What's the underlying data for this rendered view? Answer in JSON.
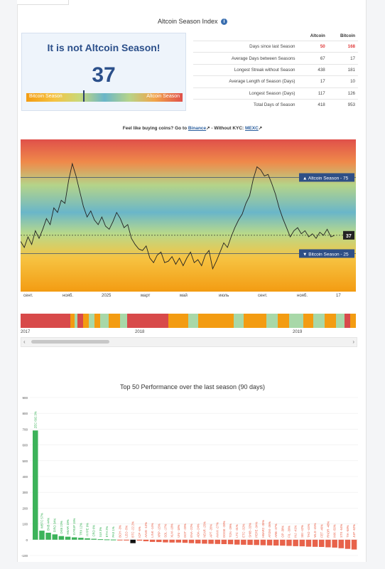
{
  "page": {
    "title": "Altcoin Season Index",
    "info_icon": "info-icon",
    "status_text": "It is not Altcoin Season!",
    "index_value": "37",
    "bar_left": "Bitcoin Season",
    "bar_right": "Altcoin Season",
    "index_fraction": 0.37
  },
  "stats": {
    "headers": [
      "",
      "Altcoin",
      "Bitcoin"
    ],
    "rows": [
      {
        "label": "Days since last Season",
        "altcoin": "50",
        "bitcoin": "168",
        "highlight": true
      },
      {
        "label": "Average Days between Seasons",
        "altcoin": "67",
        "bitcoin": "17"
      },
      {
        "label": "Longest Streak without Season",
        "altcoin": "438",
        "bitcoin": "181"
      },
      {
        "label": "Average Length of Season (Days)",
        "altcoin": "17",
        "bitcoin": "10"
      },
      {
        "label": "Longest Season (Days)",
        "altcoin": "117",
        "bitcoin": "126"
      },
      {
        "label": "Total Days of Season",
        "altcoin": "418",
        "bitcoin": "953"
      }
    ]
  },
  "promo": {
    "prefix": "Feel like buying coins? Go to ",
    "link1": "Binance",
    "middle": " - Without KYC: ",
    "link2": "MEXC"
  },
  "index_chart_x_labels": [
    "сент.",
    "нояб.",
    "2025",
    "март",
    "май",
    "июль",
    "сент.",
    "нояб.",
    "17"
  ],
  "season_bar_years": [
    "2017",
    "2018",
    "2019"
  ],
  "colors": {
    "accent": "#2b4f8a",
    "red": "#e03c3c",
    "green": "#3cb35a",
    "orange": "#f39c12",
    "bitcoin_season": "#f39c12",
    "altcoin_season": "#d84a4a",
    "neutral": "#a8d8a8"
  },
  "chart_data": [
    {
      "type": "line",
      "title": "",
      "series": [
        {
          "values": [
            33,
            29,
            36,
            31,
            40,
            35,
            41,
            48,
            44,
            55,
            52,
            60,
            58,
            73,
            84,
            76,
            66,
            56,
            49,
            53,
            47,
            44,
            49,
            43,
            41,
            46,
            52,
            48,
            42,
            44,
            35,
            31,
            28,
            27,
            30,
            22,
            19,
            24,
            26,
            19,
            20,
            23,
            18,
            22,
            17,
            22,
            26,
            19,
            21,
            17,
            24,
            27,
            15,
            20,
            26,
            32,
            29,
            36,
            42,
            47,
            51,
            58,
            63,
            74,
            82,
            80,
            76,
            77,
            71,
            64,
            55,
            48,
            42,
            36,
            40,
            42,
            38,
            40,
            36,
            38,
            35,
            39,
            37,
            41,
            36,
            37
          ]
        }
      ],
      "ylim": [
        0,
        100
      ],
      "lines": [
        {
          "label": "Altcoin Season - 75",
          "value": 75
        },
        {
          "label": "Bitcoin Season - 25",
          "value": 25
        }
      ],
      "current_label": "37",
      "xlabel": "",
      "ylabel": ""
    },
    {
      "type": "bar",
      "title": "Top 50 Performance over the last season (90 days)",
      "ylim": [
        -100,
        900
      ],
      "yticks": [
        -100,
        0,
        100,
        200,
        300,
        400,
        500,
        600,
        700,
        800,
        900
      ],
      "categories": [
        "ZEC",
        "WBTC",
        "BNB",
        "FIRO",
        "OKB",
        "HBAR",
        "SYRUP",
        "TRX",
        "HYPE",
        "CRO",
        "SUI",
        "ETH",
        "PAX",
        "BCH",
        "LEO",
        "BTC",
        "ICP",
        "AAVE",
        "LINK",
        "XRP",
        "SOL",
        "XLM",
        "UNI",
        "DOT",
        "ENA",
        "ADA",
        "NEAR",
        "APT",
        "AVAX",
        "DOGE",
        "TON",
        "LTC",
        "ETC",
        "SHIB",
        "PEPE",
        "HBAR2",
        "ATOM",
        "ARB",
        "OP",
        "FIL",
        "INJ",
        "SEI",
        "TAO",
        "WLD",
        "FET",
        "RNDR",
        "IMX",
        "STX",
        "TIA",
        "JUP"
      ],
      "values": [
        692,
        57,
        44,
        34,
        23,
        19,
        15,
        12,
        9,
        6,
        3,
        2,
        1,
        -3,
        -5,
        -22,
        -6,
        -10,
        -14,
        -15,
        -17,
        -18,
        -18,
        -20,
        -22,
        -24,
        -25,
        -26,
        -27,
        -28,
        -29,
        -31,
        -32,
        -33,
        -34,
        -35,
        -36,
        -37,
        -38,
        -39,
        -41,
        -42,
        -44,
        -45,
        -46,
        -48,
        -50,
        -54,
        -58,
        -62
      ],
      "labels": [
        "ZEC 692.3%",
        "WBTC 57%",
        "BNB 44%",
        "FIRO 34%",
        "OKB 23%",
        "HBAR 19%",
        "SYRUP 15%",
        "TRX 12%",
        "HYPE 9%",
        "CRO 6%",
        "SUI 3%",
        "ETH 2%",
        "PAX 1%",
        "BCH -3%",
        "LEO -5%",
        "BTC -22.2%",
        "ICP -6%",
        "AAVE -10%",
        "LINK -14%",
        "XRP -15%",
        "SOL -17%",
        "XLM -18%",
        "UNI -18%",
        "DOT -20%",
        "ENA -22%",
        "ADA -24%",
        "NEAR -25%",
        "APT -26%",
        "AVAX -27%",
        "DOGE -28%",
        "TON -29%",
        "LTC -31%",
        "ETC -32%",
        "SHIB -33%",
        "PEPE -34%",
        "HBAR2 -35%",
        "ATOM -36%",
        "ARB -37%",
        "OP -38%",
        "FIL -39%",
        "INJ -41%",
        "SEI -42%",
        "TAO -44%",
        "WLD -45%",
        "FET -46%",
        "RNDR -48%",
        "IMX -50%",
        "STX -54%",
        "TIA -58%",
        "JUP -62%"
      ]
    }
  ]
}
